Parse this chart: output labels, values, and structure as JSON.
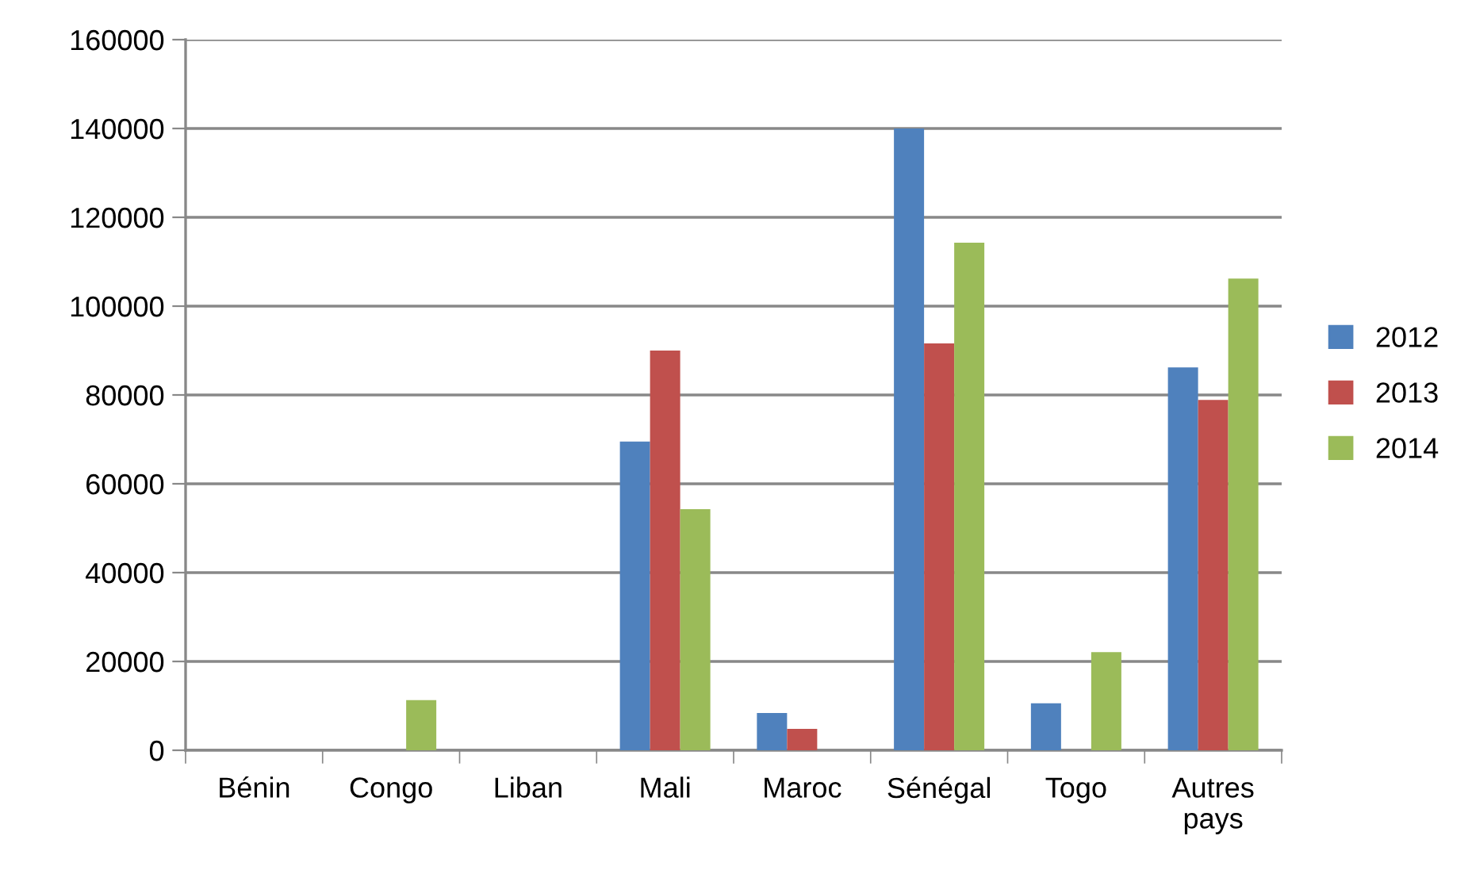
{
  "chart_data": {
    "type": "bar",
    "categories": [
      "Bénin",
      "Congo",
      "Liban",
      "Mali",
      "Maroc",
      "Sénégal",
      "Togo",
      "Autres\npays"
    ],
    "series": [
      {
        "name": "2012",
        "color": "#4f81bd",
        "values": [
          null,
          null,
          null,
          69500,
          8400,
          140000,
          10600,
          86200
        ]
      },
      {
        "name": "2013",
        "color": "#c0504d",
        "values": [
          null,
          null,
          null,
          90000,
          4800,
          91600,
          null,
          78900
        ]
      },
      {
        "name": "2014",
        "color": "#9bbb59",
        "values": [
          null,
          11300,
          null,
          54300,
          null,
          114300,
          22100,
          106200
        ]
      }
    ],
    "ylim": [
      0,
      160000
    ],
    "yticks": [
      0,
      20000,
      40000,
      60000,
      80000,
      100000,
      120000,
      140000,
      160000
    ],
    "grid": "y",
    "legend": "right"
  }
}
